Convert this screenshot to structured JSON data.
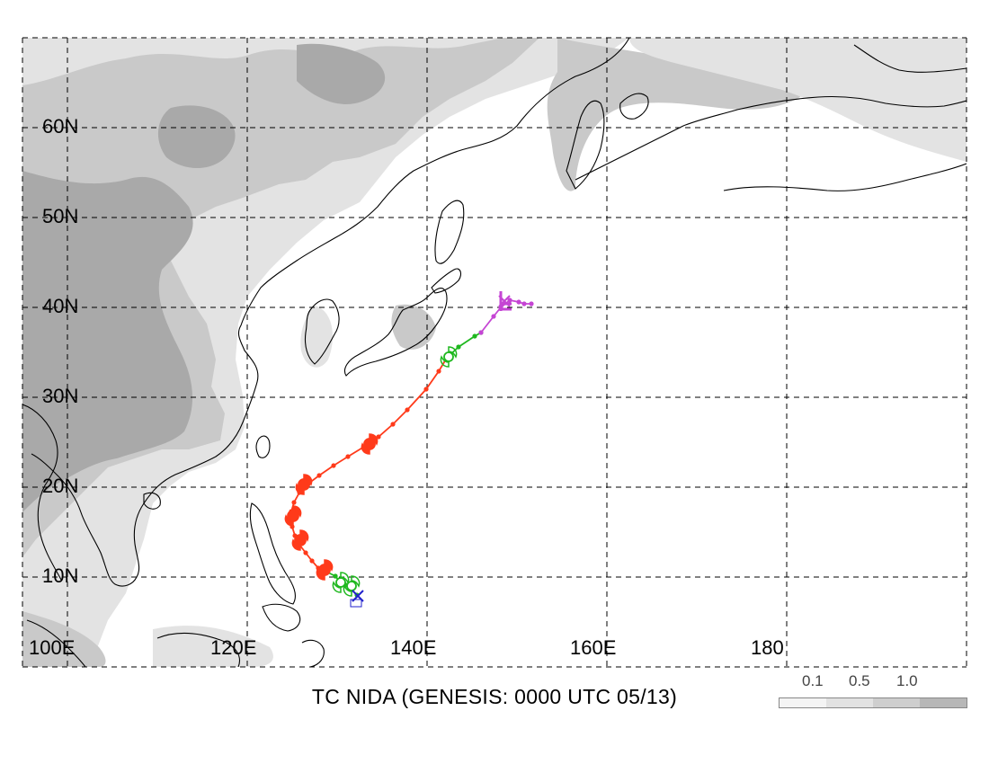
{
  "title": "TC NIDA (GENESIS: 0000 UTC 05/13)",
  "latitude_labels": [
    "60N",
    "50N",
    "40N",
    "30N",
    "20N",
    "10N"
  ],
  "longitude_labels": [
    "100E",
    "120E",
    "140E",
    "160E",
    "180"
  ],
  "legend": {
    "labels": [
      "0.1",
      "0.5",
      "1.0"
    ],
    "colors": [
      "#f4f4f4",
      "#e2e2e2",
      "#cecece",
      "#b7b7b7"
    ]
  },
  "colors": {
    "terrain_light": "#e3e3e3",
    "terrain_mid": "#c9c9c9",
    "terrain_dark": "#a9a9a9",
    "typhoon_track": "#ff3a1a",
    "tropical_storm_track": "#1fb81f",
    "extratropical_track": "#c545d4",
    "genesis_marker": "#2222cc"
  },
  "track": {
    "depression_segment": [
      [
        132.2,
        8.0
      ],
      [
        131.6,
        8.6
      ],
      [
        131.0,
        9.1
      ],
      [
        130.2,
        9.6
      ],
      [
        129.8,
        10.1
      ]
    ],
    "tropical_storm_segment": [
      [
        129.8,
        10.1
      ],
      [
        128.8,
        10.6
      ]
    ],
    "typhoon_segment": [
      [
        128.8,
        10.6
      ],
      [
        127.9,
        11.0
      ],
      [
        127.2,
        11.8
      ],
      [
        126.5,
        12.7
      ],
      [
        125.8,
        13.6
      ],
      [
        125.3,
        14.6
      ],
      [
        125.0,
        15.6
      ],
      [
        124.8,
        16.4
      ],
      [
        124.9,
        17.3
      ],
      [
        125.2,
        18.3
      ],
      [
        125.8,
        19.4
      ],
      [
        126.8,
        20.4
      ],
      [
        128.0,
        21.3
      ],
      [
        129.6,
        22.4
      ],
      [
        131.2,
        23.4
      ],
      [
        133.0,
        24.5
      ],
      [
        134.6,
        25.6
      ],
      [
        136.2,
        27.0
      ],
      [
        137.8,
        28.6
      ],
      [
        139.9,
        30.9
      ],
      [
        141.3,
        32.9
      ],
      [
        142.2,
        34.4
      ]
    ],
    "storm_late_segment": [
      [
        142.2,
        34.4
      ],
      [
        143.5,
        35.6
      ],
      [
        145.3,
        36.8
      ],
      [
        146.0,
        37.2
      ]
    ],
    "extratropical_segment": [
      [
        146.0,
        37.2
      ],
      [
        147.4,
        39.0
      ],
      [
        148.2,
        40.0
      ],
      [
        149.2,
        40.8
      ],
      [
        150.2,
        40.6
      ],
      [
        150.8,
        40.4
      ],
      [
        151.6,
        40.4
      ]
    ],
    "typhoon_symbols": [
      [
        128.6,
        10.8
      ],
      [
        125.9,
        14.1
      ],
      [
        125.1,
        16.8
      ],
      [
        126.3,
        20.3
      ],
      [
        133.6,
        24.8
      ]
    ],
    "storm_symbols": [
      [
        130.4,
        9.4
      ],
      [
        131.6,
        9.0
      ],
      [
        142.4,
        34.5
      ]
    ],
    "genesis_point": [
      132.3,
      7.9
    ],
    "extratropical_point": [
      148.6,
      40.7
    ]
  }
}
